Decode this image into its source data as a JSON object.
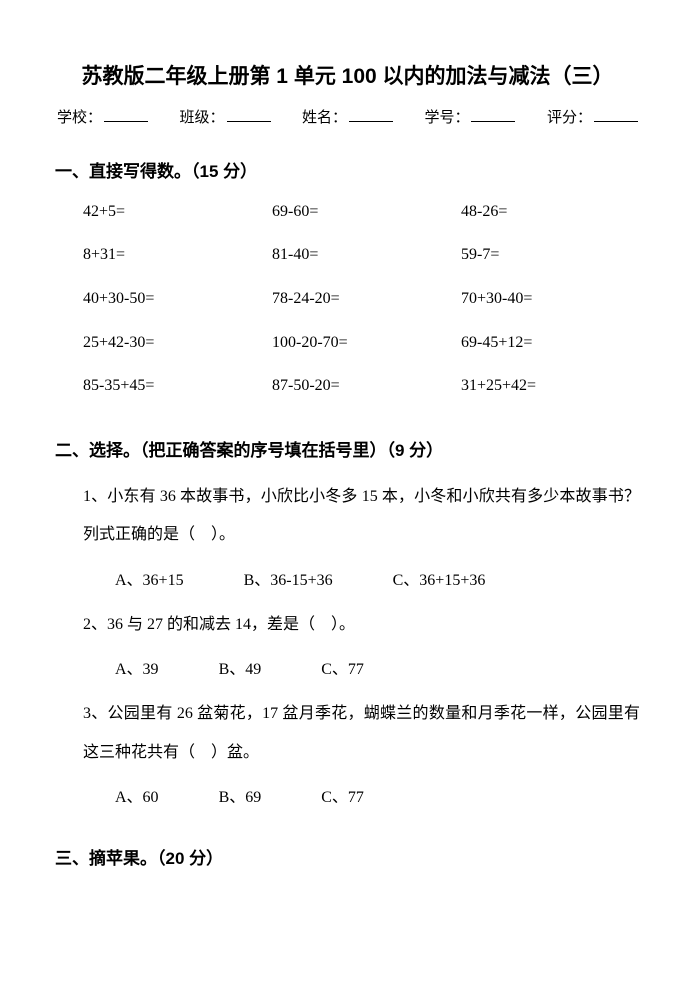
{
  "title": "苏教版二年级上册第 1 单元 100 以内的加法与减法（三）",
  "info": {
    "school_label": "学校：",
    "class_label": "班级：",
    "name_label": "姓名：",
    "id_label": "学号：",
    "score_label": "评分："
  },
  "section1": {
    "heading": "一、直接写得数。（15 分）",
    "problems": [
      [
        "42+5=",
        "69-60=",
        "48-26="
      ],
      [
        "8+31=",
        "81-40=",
        "59-7="
      ],
      [
        "40+30-50=",
        "78-24-20=",
        "70+30-40="
      ],
      [
        "25+42-30=",
        "100-20-70=",
        "69-45+12="
      ],
      [
        "85-35+45=",
        "87-50-20=",
        "31+25+42="
      ]
    ]
  },
  "section2": {
    "heading": "二、选择。（把正确答案的序号填在括号里）（9 分）",
    "questions": [
      {
        "text": "1、小东有 36 本故事书，小欣比小冬多 15 本，小冬和小欣共有多少本故事书？列式正确的是（　）。",
        "options": [
          "A、36+15",
          "B、36-15+36",
          "C、36+15+36"
        ]
      },
      {
        "text": "2、36 与 27 的和减去 14，差是（　）。",
        "options": [
          "A、39",
          "B、49",
          "C、77"
        ]
      },
      {
        "text": "3、公园里有 26 盆菊花，17 盆月季花，蝴蝶兰的数量和月季花一样，公园里有这三种花共有（　）盆。",
        "options": [
          "A、60",
          "B、69",
          "C、77"
        ]
      }
    ]
  },
  "section3": {
    "heading": "三、摘苹果。（20 分）"
  }
}
